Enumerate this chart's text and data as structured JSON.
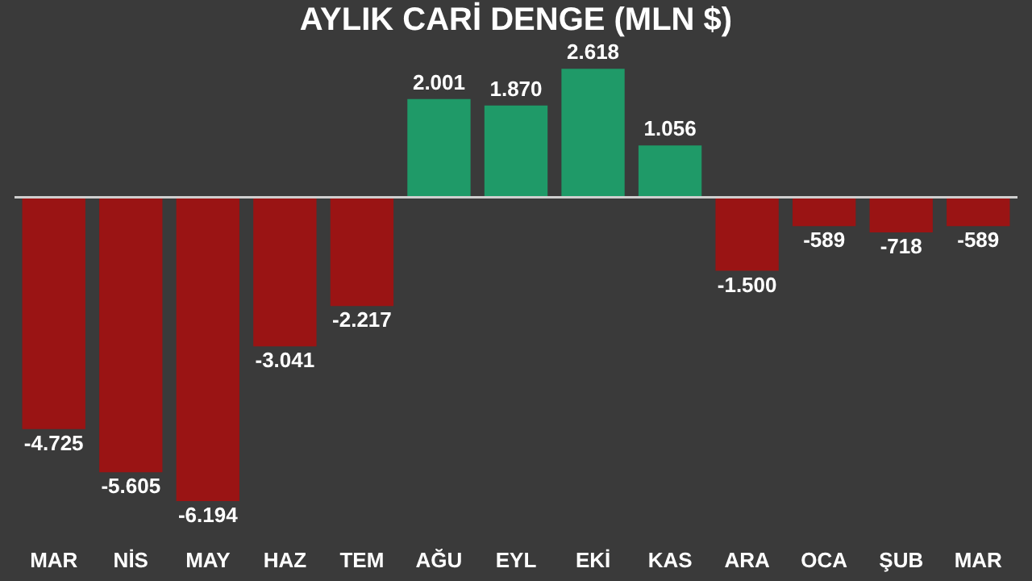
{
  "chart_data": {
    "type": "bar",
    "title": "AYLIK CARİ DENGE (MLN $)",
    "categories": [
      "MAR",
      "NİS",
      "MAY",
      "HAZ",
      "TEM",
      "AĞU",
      "EYL",
      "EKİ",
      "KAS",
      "ARA",
      "OCA",
      "ŞUB",
      "MAR"
    ],
    "values": [
      -4725,
      -5605,
      -6194,
      -3041,
      -2217,
      2001,
      1870,
      2618,
      1056,
      -1500,
      -589,
      -718,
      -589
    ],
    "value_labels": [
      "-4.725",
      "-5.605",
      "-6.194",
      "-3.041",
      "-2.217",
      "2.001",
      "1.870",
      "2.618",
      "1.056",
      "-1.500",
      "-589",
      "-718",
      "-589"
    ],
    "colors": [
      "#9a1414",
      "#9a1414",
      "#9a1414",
      "#9a1414",
      "#9a1414",
      "#1f9a68",
      "#1f9a68",
      "#1f9a68",
      "#1f9a68",
      "#9a1414",
      "#9a1414",
      "#9a1414",
      "#9a1414"
    ],
    "grid": false
  }
}
